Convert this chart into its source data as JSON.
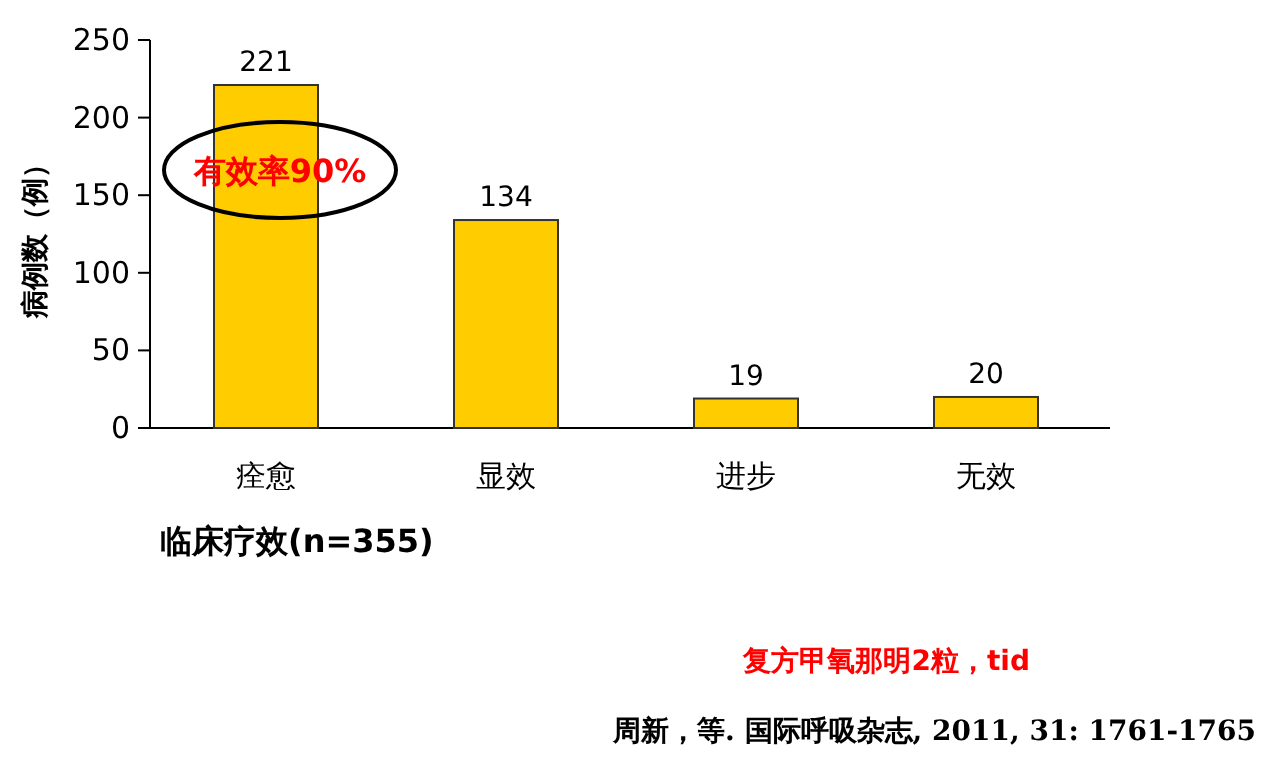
{
  "chart_data": {
    "type": "bar",
    "categories": [
      "痊愈",
      "显效",
      "进步",
      "无效"
    ],
    "values": [
      221,
      134,
      19,
      20
    ],
    "color": "#ffcc00",
    "ylim": [
      0,
      250
    ],
    "yticks": [
      0,
      50,
      100,
      150,
      200,
      250
    ],
    "ylabel": "病例数（例）",
    "xlabel": "临床疗效(n=355)",
    "data_labels": true,
    "annotations": [
      "有效率90%",
      "复方甲氧那明2粒，tid",
      "周新，等. 国际呼吸杂志, 2011, 31: 1761-1765"
    ]
  }
}
